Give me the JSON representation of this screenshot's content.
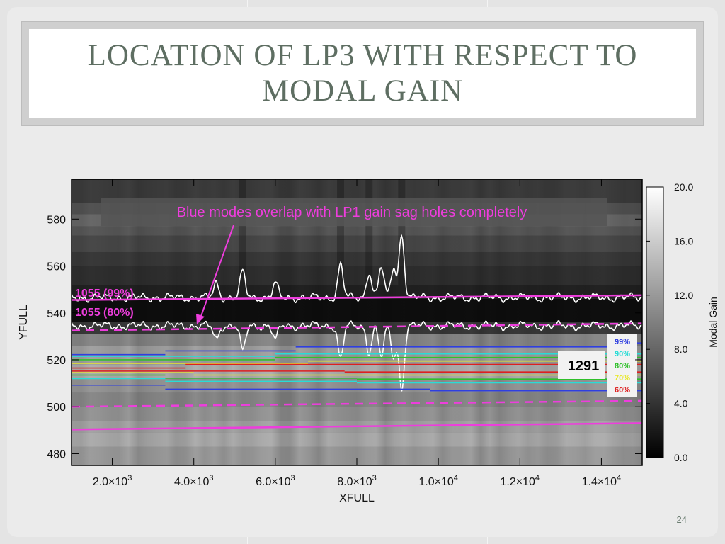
{
  "slide": {
    "title": "LOCATION OF LP3 WITH RESPECT TO MODAL GAIN",
    "page_number": "24"
  },
  "colors": {
    "magenta": "#ee3ddd",
    "white_trace": "#ffffff",
    "title_text": "#5e6e62"
  },
  "chart_data": {
    "type": "heatmap",
    "title": "",
    "xlabel": "XFULL",
    "ylabel": "YFULL",
    "x_scale": "linear",
    "xlim": [
      1000,
      15000
    ],
    "ylim": [
      475,
      597
    ],
    "x_ticks": [
      2000,
      4000,
      6000,
      8000,
      10000,
      12000,
      14000
    ],
    "x_tick_labels": [
      {
        "mantissa": "2.0×10",
        "exp": "3"
      },
      {
        "mantissa": "4.0×10",
        "exp": "3"
      },
      {
        "mantissa": "6.0×10",
        "exp": "3"
      },
      {
        "mantissa": "8.0×10",
        "exp": "3"
      },
      {
        "mantissa": "1.0×10",
        "exp": "4"
      },
      {
        "mantissa": "1.2×10",
        "exp": "4"
      },
      {
        "mantissa": "1.4×10",
        "exp": "4"
      }
    ],
    "y_ticks": [
      480,
      500,
      520,
      540,
      560,
      580
    ],
    "y_tick_labels": [
      "480",
      "500",
      "520",
      "540",
      "560",
      "580"
    ],
    "colorbar": {
      "label": "Modal Gain",
      "range": [
        0.0,
        20.0
      ],
      "ticks": [
        0.0,
        4.0,
        8.0,
        12.0,
        16.0,
        20.0
      ],
      "tick_labels": [
        "0.0",
        "4.0",
        "8.0",
        "12.0",
        "16.0",
        "20.0"
      ],
      "colormap": "grayscale"
    },
    "lp1_lines": [
      {
        "label": "1055 (99%)",
        "style": "solid",
        "color": "#ee3ddd",
        "y_start": 545.5,
        "y_end": 547.5
      },
      {
        "label": "1055 (80%)",
        "style": "dashed",
        "color": "#ee3ddd",
        "y_start": 532.5,
        "y_end": 535.5
      }
    ],
    "lp3_lines": [
      {
        "style": "dashed",
        "color": "#ee3ddd",
        "y_start": 500.0,
        "y_end": 502.5
      },
      {
        "style": "solid",
        "color": "#ee3ddd",
        "y_start": 490.3,
        "y_end": 493.0
      }
    ],
    "gain_contours": [
      {
        "name": "99%",
        "color": "#2f3fe0",
        "segments": [
          {
            "x": [
              1000,
              3300
            ],
            "y": 522.2
          },
          {
            "x": [
              3300,
              6500
            ],
            "y": 523.8
          },
          {
            "x": [
              6500,
              14600
            ],
            "y": 525.5
          },
          {
            "x": [
              14600,
              15000
            ],
            "y": 527.2
          },
          {
            "x": [
              1000,
              3300
            ],
            "y": 509.2
          },
          {
            "x": [
              3300,
              9800
            ],
            "y": 507.5
          },
          {
            "x": [
              9800,
              15000
            ],
            "y": 506.8
          }
        ]
      },
      {
        "name": "90%",
        "color": "#28dcd6",
        "segments": [
          {
            "x": [
              1000,
              6000
            ],
            "y": 521.5
          },
          {
            "x": [
              6000,
              15000
            ],
            "y": 522.5
          },
          {
            "x": [
              1000,
              3300
            ],
            "y": 512.0
          },
          {
            "x": [
              3300,
              8000
            ],
            "y": 510.8
          },
          {
            "x": [
              8000,
              15000
            ],
            "y": 510.2
          }
        ]
      },
      {
        "name": "80%",
        "color": "#2fc02a",
        "segments": [
          {
            "x": [
              1000,
              6000
            ],
            "y": 520.0
          },
          {
            "x": [
              6000,
              15000
            ],
            "y": 521.0
          },
          {
            "x": [
              1000,
              3300
            ],
            "y": 513.5
          },
          {
            "x": [
              3300,
              8000
            ],
            "y": 512.2
          },
          {
            "x": [
              8000,
              15000
            ],
            "y": 511.8
          }
        ]
      },
      {
        "name": "70%",
        "color": "#e8e82a",
        "segments": [
          {
            "x": [
              1000,
              6800
            ],
            "y": 518.5
          },
          {
            "x": [
              6800,
              15000
            ],
            "y": 519.5
          },
          {
            "x": [
              1000,
              4000
            ],
            "y": 514.5
          },
          {
            "x": [
              4000,
              15000
            ],
            "y": 513.5
          }
        ]
      },
      {
        "name": "60%",
        "color": "#dd2020",
        "segments": [
          {
            "x": [
              1000,
              3800
            ],
            "y": 516.5
          },
          {
            "x": [
              3800,
              15000
            ],
            "y": 518.0
          },
          {
            "x": [
              1000,
              7700
            ],
            "y": 515.2
          },
          {
            "x": [
              7700,
              15000
            ],
            "y": 514.8
          }
        ]
      }
    ],
    "mode_boundary_traces": {
      "color": "#ffffff",
      "upper_baseline": 546.5,
      "lower_baseline": 534.5,
      "peaks": [
        {
          "x": 4550,
          "h": 6
        },
        {
          "x": 5200,
          "h": 11
        },
        {
          "x": 6000,
          "h": 6
        },
        {
          "x": 7600,
          "h": 14
        },
        {
          "x": 8300,
          "h": 11
        },
        {
          "x": 8600,
          "h": 13
        },
        {
          "x": 8900,
          "h": 13
        },
        {
          "x": 9100,
          "h": 27
        }
      ]
    },
    "annotations": {
      "banner": "Blue modes overlap with LP1 gain sag holes completely",
      "threshold_value": "1291",
      "legend_label_99": "99%",
      "legend_label_90": "90%",
      "legend_label_80": "80%",
      "legend_label_70": "70%",
      "legend_label_60": "60%"
    }
  }
}
